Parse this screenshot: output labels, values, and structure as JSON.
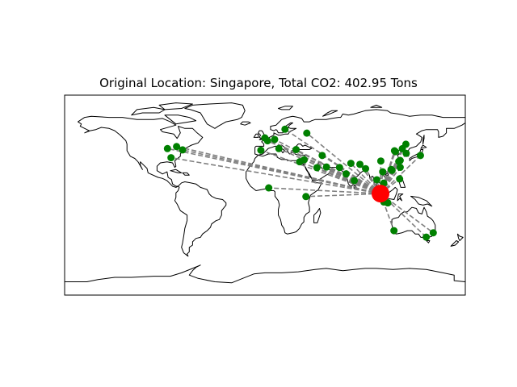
{
  "title": "Original Location: Singapore, Total CO2: 402.95 Tons",
  "colors": {
    "origin": "#ff0000",
    "destination": "#008000",
    "route": "#808080",
    "coastline": "#000000",
    "frame": "#000000"
  },
  "map": {
    "projection": "equirectangular",
    "lon_range": [
      -180,
      180
    ],
    "lat_range": [
      -90,
      90
    ]
  },
  "origin": {
    "name": "Singapore",
    "lon": 103.8,
    "lat": 1.35
  },
  "destinations": [
    {
      "lon": -79.4,
      "lat": 43.7
    },
    {
      "lon": -87.6,
      "lat": 41.9
    },
    {
      "lon": -74.0,
      "lat": 40.7
    },
    {
      "lon": -84.4,
      "lat": 33.7
    },
    {
      "lon": -0.1,
      "lat": 51.5
    },
    {
      "lon": 2.35,
      "lat": 48.9
    },
    {
      "lon": 8.7,
      "lat": 50.1
    },
    {
      "lon": -3.7,
      "lat": 40.4
    },
    {
      "lon": 12.5,
      "lat": 41.9
    },
    {
      "lon": 18.0,
      "lat": 59.3
    },
    {
      "lon": 28.0,
      "lat": 41.0
    },
    {
      "lon": 37.6,
      "lat": 55.8
    },
    {
      "lon": 31.2,
      "lat": 30.0
    },
    {
      "lon": 35.2,
      "lat": 31.8
    },
    {
      "lon": 46.7,
      "lat": 24.7
    },
    {
      "lon": 55.3,
      "lat": 25.3
    },
    {
      "lon": 51.4,
      "lat": 35.7
    },
    {
      "lon": 36.8,
      "lat": -1.3
    },
    {
      "lon": 3.4,
      "lat": 6.5
    },
    {
      "lon": 67.0,
      "lat": 24.9
    },
    {
      "lon": 72.9,
      "lat": 19.1
    },
    {
      "lon": 77.2,
      "lat": 28.6
    },
    {
      "lon": 80.3,
      "lat": 13.1
    },
    {
      "lon": 90.4,
      "lat": 23.8
    },
    {
      "lon": 85.3,
      "lat": 27.7
    },
    {
      "lon": 100.5,
      "lat": 13.8
    },
    {
      "lon": 106.7,
      "lat": 10.8
    },
    {
      "lon": 105.8,
      "lat": 21.0
    },
    {
      "lon": 114.2,
      "lat": 22.3
    },
    {
      "lon": 121.5,
      "lat": 31.2
    },
    {
      "lon": 116.4,
      "lat": 39.9
    },
    {
      "lon": 126.9,
      "lat": 37.6
    },
    {
      "lon": 139.7,
      "lat": 35.7
    },
    {
      "lon": 121.0,
      "lat": 14.6
    },
    {
      "lon": 106.8,
      "lat": -6.2
    },
    {
      "lon": 121.5,
      "lat": 25.0
    },
    {
      "lon": 113.3,
      "lat": 23.1
    },
    {
      "lon": 104.1,
      "lat": 30.7
    },
    {
      "lon": 117.2,
      "lat": 39.1
    },
    {
      "lon": 120.2,
      "lat": 30.3
    },
    {
      "lon": 123.4,
      "lat": 41.8
    },
    {
      "lon": 126.6,
      "lat": 45.8
    },
    {
      "lon": 115.9,
      "lat": -32.0
    },
    {
      "lon": 151.2,
      "lat": -33.9
    },
    {
      "lon": 144.9,
      "lat": -37.8
    },
    {
      "lon": 110.4,
      "lat": -7.0
    }
  ]
}
